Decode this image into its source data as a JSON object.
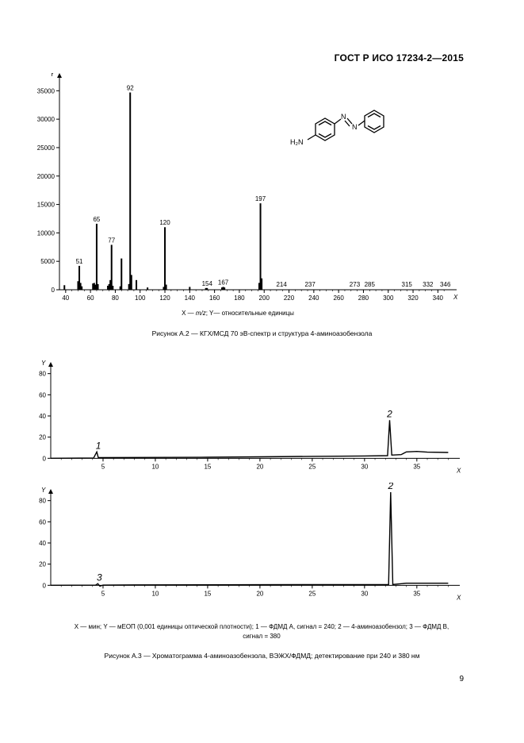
{
  "header": {
    "doc_id": "ГОСТ Р ИСО 17234-2—2015"
  },
  "figure_a2": {
    "caption": "Рисунок А.2 — КГХ/МСД 70 эВ-спектр и структура 4-аминоазобензола",
    "axis_note_parts": [
      "X — ",
      "m/z",
      "; Y— относительные единицы"
    ]
  },
  "molecule": {
    "label_h2n": "H₂N",
    "label_n1": "N",
    "label_n2": "N"
  },
  "figure_a3": {
    "legend_line1": "X — мин; Y — мЕОП (0,001 единицы оптической плотности); 1 — ФДМД А, сигнал = 240; 2 — 4-аминоазобензол; 3 — ФДМД В,",
    "legend_line2": "сигнал = 380",
    "caption": "Рисунок А.3 — Хроматограмма 4-аминоазобензола, ВЭЖХ/ФДМД; детектирование при 240 и 380 нм"
  },
  "page_number": "9",
  "chart_data": [
    {
      "type": "bar",
      "xlabel": "X",
      "ylabel": "Y",
      "xlim": [
        35,
        350
      ],
      "ylim": [
        0,
        37000
      ],
      "x_ticks": [
        40,
        60,
        80,
        100,
        120,
        140,
        160,
        180,
        200,
        220,
        240,
        260,
        280,
        300,
        320,
        340
      ],
      "y_ticks": [
        0,
        5000,
        10000,
        15000,
        20000,
        25000,
        30000,
        35000
      ],
      "peaks": [
        {
          "x": 39,
          "y": 800
        },
        {
          "x": 50,
          "y": 1500
        },
        {
          "x": 51,
          "y": 4200,
          "label": "51"
        },
        {
          "x": 52,
          "y": 1200
        },
        {
          "x": 53,
          "y": 600
        },
        {
          "x": 62,
          "y": 1100
        },
        {
          "x": 63,
          "y": 1200
        },
        {
          "x": 64,
          "y": 900
        },
        {
          "x": 65,
          "y": 11600,
          "label": "65"
        },
        {
          "x": 66,
          "y": 1000
        },
        {
          "x": 74,
          "y": 700
        },
        {
          "x": 75,
          "y": 1000
        },
        {
          "x": 76,
          "y": 1700
        },
        {
          "x": 77,
          "y": 7900,
          "label": "77"
        },
        {
          "x": 78,
          "y": 700
        },
        {
          "x": 84,
          "y": 600
        },
        {
          "x": 85,
          "y": 5500
        },
        {
          "x": 91,
          "y": 1000
        },
        {
          "x": 92,
          "y": 34700,
          "label": "92"
        },
        {
          "x": 93,
          "y": 2600
        },
        {
          "x": 97,
          "y": 1700
        },
        {
          "x": 106,
          "y": 400
        },
        {
          "x": 119,
          "y": 500
        },
        {
          "x": 120,
          "y": 11000,
          "label": "120"
        },
        {
          "x": 121,
          "y": 900
        },
        {
          "x": 140,
          "y": 500
        },
        {
          "x": 153,
          "y": 300
        },
        {
          "x": 154,
          "y": 300,
          "label": "154"
        },
        {
          "x": 166,
          "y": 400
        },
        {
          "x": 167,
          "y": 500,
          "label": "167"
        },
        {
          "x": 168,
          "y": 400
        },
        {
          "x": 196,
          "y": 1200
        },
        {
          "x": 197,
          "y": 15200,
          "label": "197"
        },
        {
          "x": 198,
          "y": 2000
        }
      ],
      "floating_labels": [
        {
          "x": 214,
          "label": "214"
        },
        {
          "x": 237,
          "label": "237"
        },
        {
          "x": 273,
          "label": "273"
        },
        {
          "x": 285,
          "label": "285"
        },
        {
          "x": 315,
          "label": "315"
        },
        {
          "x": 332,
          "label": "332"
        },
        {
          "x": 346,
          "label": "346"
        }
      ]
    },
    {
      "type": "line",
      "xlabel": "X",
      "ylabel": "Y",
      "xlim": [
        0,
        38.5
      ],
      "ylim": [
        -2,
        85
      ],
      "x_ticks": [
        5,
        10,
        15,
        20,
        25,
        30,
        35
      ],
      "y_ticks": [
        0,
        20,
        40,
        60,
        80
      ],
      "points": [
        [
          0,
          0
        ],
        [
          4.1,
          0.3
        ],
        [
          4.4,
          6
        ],
        [
          4.55,
          0.6
        ],
        [
          8,
          0.8
        ],
        [
          15,
          1.0
        ],
        [
          20,
          1.4
        ],
        [
          25,
          1.8
        ],
        [
          30,
          2.2
        ],
        [
          32.2,
          2.5
        ],
        [
          32.4,
          36
        ],
        [
          32.6,
          3
        ],
        [
          33.5,
          3.5
        ],
        [
          34,
          6
        ],
        [
          35,
          6.5
        ],
        [
          36,
          5.8
        ],
        [
          38,
          5.5
        ]
      ],
      "annotations": [
        {
          "x": 4.4,
          "y": 6,
          "label": "1"
        },
        {
          "x": 32.4,
          "y": 36,
          "label": "2"
        }
      ]
    },
    {
      "type": "line",
      "xlabel": "X",
      "ylabel": "Y",
      "xlim": [
        0,
        38.5
      ],
      "ylim": [
        -2,
        85
      ],
      "x_ticks": [
        5,
        10,
        15,
        20,
        25,
        30,
        35
      ],
      "y_ticks": [
        0,
        20,
        40,
        60,
        80
      ],
      "points": [
        [
          0,
          0
        ],
        [
          4.3,
          0.2
        ],
        [
          4.5,
          1.5
        ],
        [
          4.7,
          -0.8
        ],
        [
          5,
          0.2
        ],
        [
          8,
          0.4
        ],
        [
          32.3,
          0.8
        ],
        [
          32.5,
          88
        ],
        [
          32.7,
          0.8
        ],
        [
          34,
          2
        ],
        [
          38,
          2
        ]
      ],
      "annotations": [
        {
          "x": 4.5,
          "y": 1.5,
          "label": "3"
        },
        {
          "x": 32.5,
          "y": 88,
          "label": "2"
        }
      ]
    }
  ]
}
